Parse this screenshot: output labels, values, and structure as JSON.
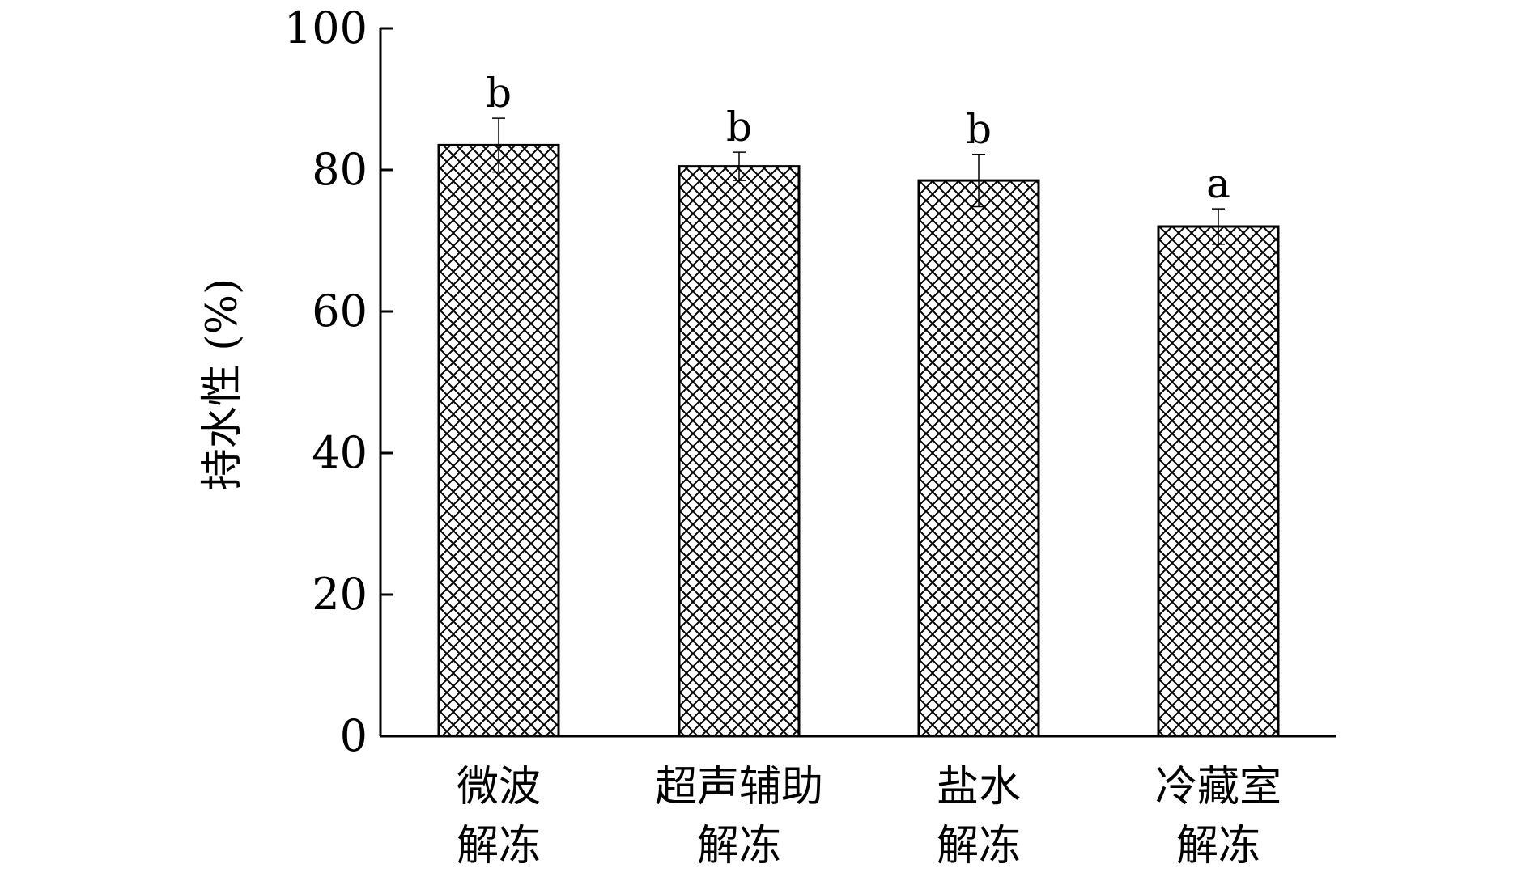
{
  "chart_data": {
    "type": "bar",
    "title": "",
    "xlabel": "",
    "ylabel": "持水性 (%)",
    "ylim": [
      0,
      100
    ],
    "yticks": [
      0,
      20,
      40,
      60,
      80,
      100
    ],
    "ytick_labels": [
      "0",
      "20",
      "40",
      "60",
      "80",
      "100"
    ],
    "grid": false,
    "legend": "none",
    "categories": [
      [
        "微波",
        "解冻"
      ],
      [
        "超声辅助",
        "解冻"
      ],
      [
        "盐水",
        "解冻"
      ],
      [
        "冷藏室",
        "解冻"
      ]
    ],
    "values": [
      83.5,
      80.5,
      78.5,
      72.0
    ],
    "error_bars": [
      3.8,
      2.0,
      3.7,
      2.5
    ],
    "significance_labels": [
      "b",
      "b",
      "b",
      "a"
    ],
    "bar_pattern": "crosshatch",
    "colors": {
      "bar_stroke": "#000000",
      "hatch": "#000000",
      "background": "#ffffff"
    }
  }
}
